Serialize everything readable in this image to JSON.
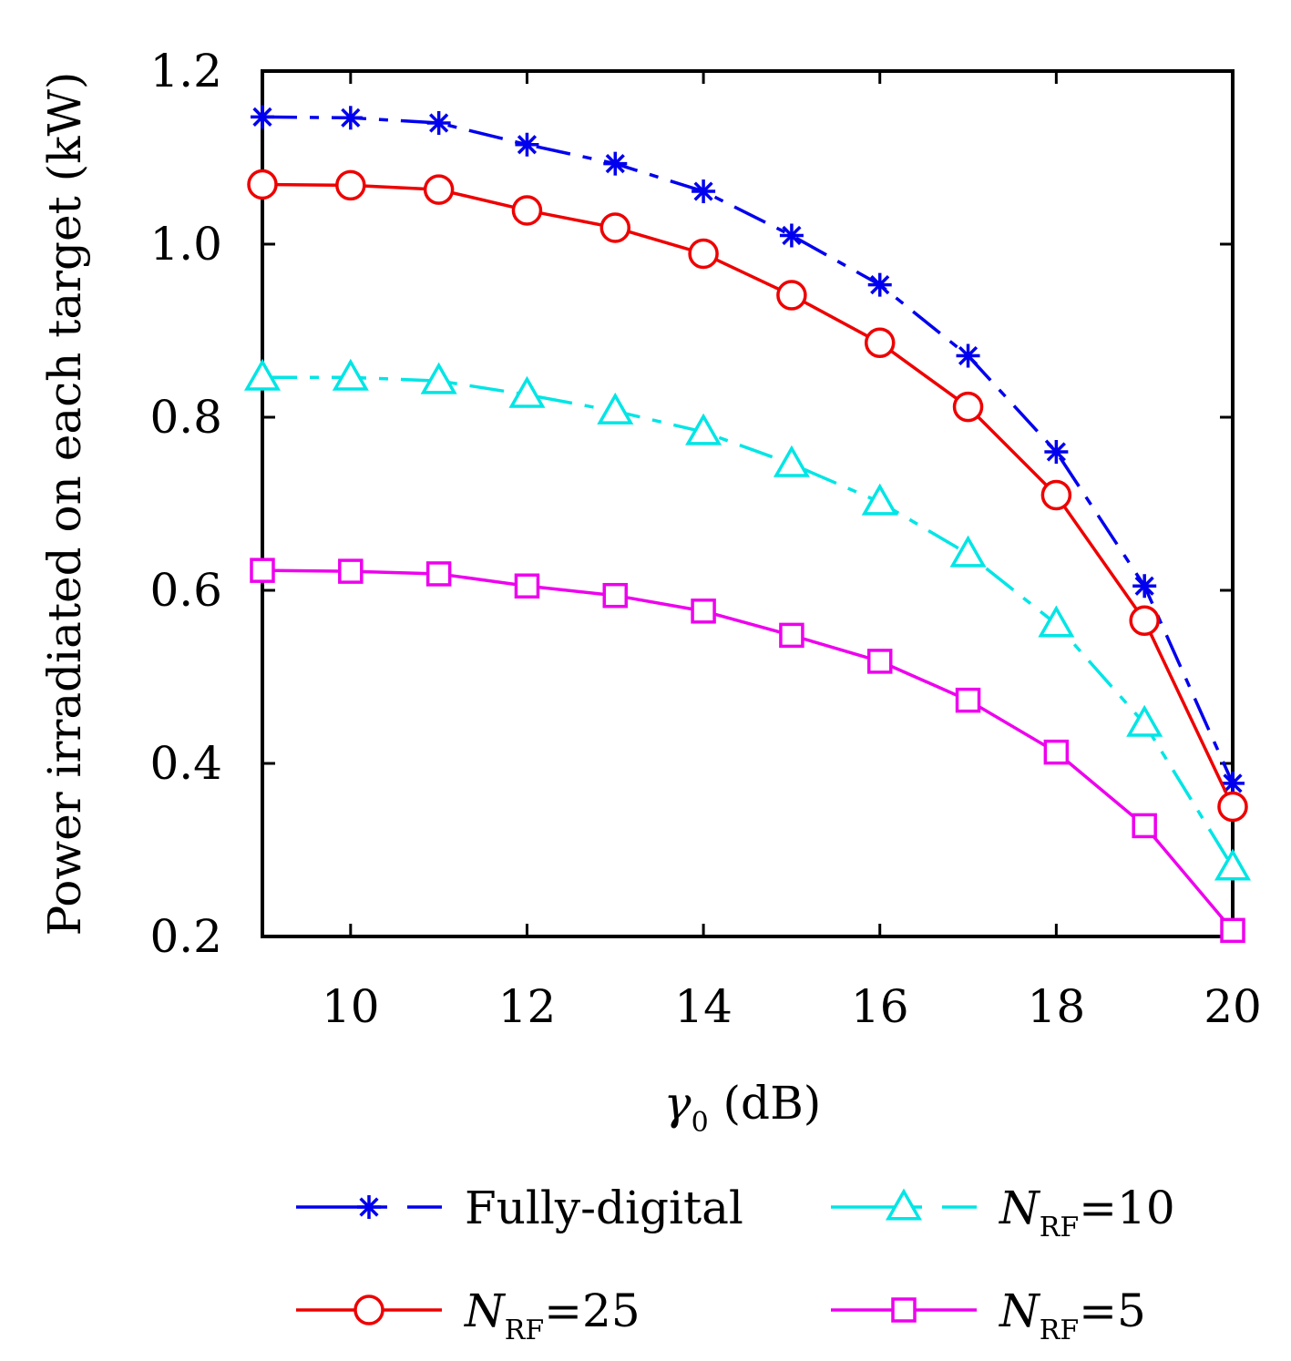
{
  "chart_data": {
    "type": "line",
    "xlabel": "γ0 (dB)",
    "ylabel": "Power irradiated on each target (kW)",
    "xlim": [
      9,
      20
    ],
    "ylim": [
      0.2,
      1.2
    ],
    "x_ticks": [
      10,
      12,
      14,
      16,
      18,
      20
    ],
    "x_tick_labels": [
      "10",
      "12",
      "14",
      "16",
      "18",
      "20"
    ],
    "y_ticks": [
      0.2,
      0.4,
      0.6,
      0.8,
      1.0,
      1.2
    ],
    "y_tick_labels": [
      "0.2",
      "0.4",
      "0.6",
      "0.8",
      "1.0",
      "1.2"
    ],
    "grid": false,
    "legend_position": "bottom",
    "x": [
      9,
      10,
      11,
      12,
      13,
      14,
      15,
      16,
      17,
      18,
      19,
      20
    ],
    "series": [
      {
        "name": "Fully-digital",
        "color": "#0000ee",
        "marker": "asterisk",
        "line": "dashed",
        "values": [
          1.147,
          1.146,
          1.14,
          1.115,
          1.093,
          1.061,
          1.01,
          0.953,
          0.871,
          0.76,
          0.605,
          0.377
        ]
      },
      {
        "name": "NRF=25",
        "name_main": "N",
        "name_sub": "RF",
        "name_rest": "=25",
        "color": "#ee0000",
        "marker": "circle",
        "line": "solid",
        "values": [
          1.069,
          1.068,
          1.063,
          1.039,
          1.019,
          0.989,
          0.941,
          0.886,
          0.812,
          0.71,
          0.565,
          0.35
        ]
      },
      {
        "name": "NRF=10",
        "name_main": "N",
        "name_sub": "RF",
        "name_rest": "=10",
        "color": "#00e5e5",
        "marker": "triangle",
        "line": "dashed",
        "values": [
          0.846,
          0.846,
          0.842,
          0.826,
          0.807,
          0.783,
          0.746,
          0.702,
          0.642,
          0.561,
          0.446,
          0.28
        ]
      },
      {
        "name": "NRF=5",
        "name_main": "N",
        "name_sub": "RF",
        "name_rest": "=5",
        "color": "#ee00ee",
        "marker": "square",
        "line": "solid",
        "values": [
          0.623,
          0.622,
          0.619,
          0.605,
          0.594,
          0.576,
          0.548,
          0.518,
          0.473,
          0.413,
          0.328,
          0.207
        ]
      }
    ]
  }
}
